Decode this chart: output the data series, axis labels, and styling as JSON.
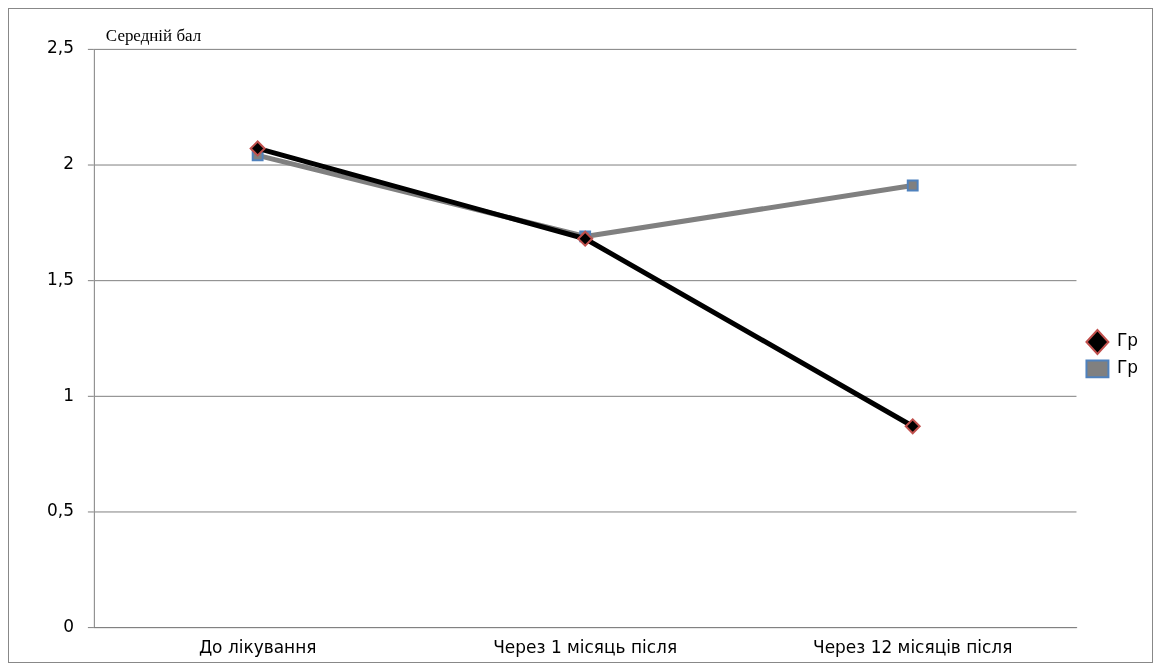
{
  "chart_data": {
    "type": "line",
    "ylabel": "Середній бал",
    "categories": [
      "До лікування",
      "Через 1 місяць після",
      "Через 12 місяців після"
    ],
    "series": [
      {
        "name": "Гр",
        "color": "#808080",
        "marker": "square",
        "values": [
          2.04,
          1.69,
          1.91
        ]
      },
      {
        "name": "Гр",
        "color": "#000000",
        "marker": "diamond",
        "values": [
          2.07,
          1.68,
          0.87
        ]
      }
    ],
    "ylim": [
      0,
      2.5
    ],
    "yticks": [
      0,
      {
        "value": 0.5,
        "label": "0,5"
      },
      1,
      {
        "value": 1.5,
        "label": "1,5"
      },
      2,
      {
        "value": 2.5,
        "label": "2,5"
      }
    ],
    "grid": "y",
    "legend": "right"
  }
}
